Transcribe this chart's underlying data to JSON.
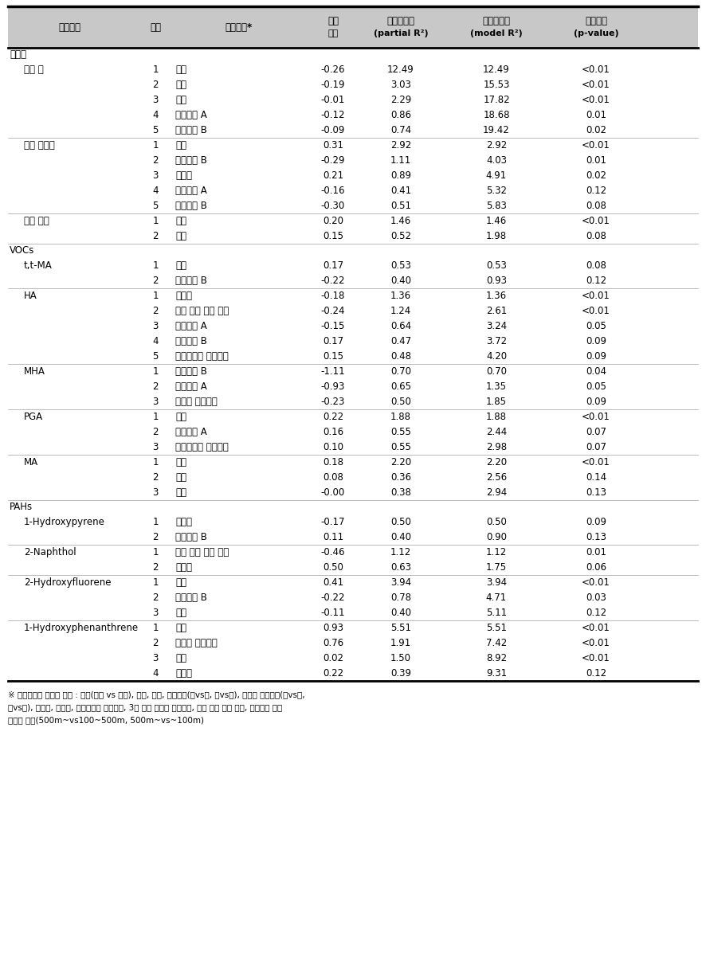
{
  "header_line1": [
    "종속변수",
    "단계",
    "독립변수*",
    "회귀",
    "부분설명력",
    "모델설명력",
    "유의수준"
  ],
  "header_line2": [
    "",
    "",
    "",
    "계수",
    "(partial R²)",
    "(model R²)",
    "(p-value)"
  ],
  "sections": [
    {
      "section_label": "중금속",
      "groups": [
        {
          "group_label": "혈중 납",
          "rows": [
            {
              "step": "1",
              "var": "성별",
              "coef": "-0.26",
              "partial": "12.49",
              "model": "12.49",
              "pval": "<0.01"
            },
            {
              "step": "2",
              "var": "지역",
              "coef": "-0.19",
              "partial": "3.03",
              "model": "15.53",
              "pval": "<0.01"
            },
            {
              "step": "3",
              "var": "연령",
              "coef": "-0.01",
              "partial": "2.29",
              "model": "17.82",
              "pval": "<0.01"
            },
            {
              "step": "4",
              "var": "도로거리 A",
              "coef": "-0.12",
              "partial": "0.86",
              "model": "18.68",
              "pval": "0.01"
            },
            {
              "step": "5",
              "var": "가구소득 B",
              "coef": "-0.09",
              "partial": "0.74",
              "model": "19.42",
              "pval": "0.02"
            }
          ]
        },
        {
          "group_label": "요중 카드뮴",
          "rows": [
            {
              "step": "1",
              "var": "성별",
              "coef": "0.31",
              "partial": "2.92",
              "model": "2.92",
              "pval": "<0.01"
            },
            {
              "step": "2",
              "var": "도로거리 B",
              "coef": "-0.29",
              "partial": "1.11",
              "model": "4.03",
              "pval": "0.01"
            },
            {
              "step": "3",
              "var": "음주력",
              "coef": "0.21",
              "partial": "0.89",
              "model": "4.91",
              "pval": "0.02"
            },
            {
              "step": "4",
              "var": "교육수준 A",
              "coef": "-0.16",
              "partial": "0.41",
              "model": "5.32",
              "pval": "0.12"
            },
            {
              "step": "5",
              "var": "교육수준 B",
              "coef": "-0.30",
              "partial": "0.51",
              "model": "5.83",
              "pval": "0.08"
            }
          ]
        },
        {
          "group_label": "요중 수은",
          "rows": [
            {
              "step": "1",
              "var": "성별",
              "coef": "0.20",
              "partial": "1.46",
              "model": "1.46",
              "pval": "<0.01"
            },
            {
              "step": "2",
              "var": "지역",
              "coef": "0.15",
              "partial": "0.52",
              "model": "1.98",
              "pval": "0.08"
            }
          ]
        }
      ]
    },
    {
      "section_label": "VOCs",
      "groups": [
        {
          "group_label": "t,t-MA",
          "rows": [
            {
              "step": "1",
              "var": "성별",
              "coef": "0.17",
              "partial": "0.53",
              "model": "0.53",
              "pval": "0.08"
            },
            {
              "step": "2",
              "var": "도로거리 B",
              "coef": "-0.22",
              "partial": "0.40",
              "model": "0.93",
              "pval": "0.12"
            }
          ]
        },
        {
          "group_label": "HA",
          "rows": [
            {
              "step": "1",
              "var": "음주력",
              "coef": "-0.18",
              "partial": "1.36",
              "model": "1.36",
              "pval": "<0.01"
            },
            {
              "step": "2",
              "var": "구운 음식 섭취 여부",
              "coef": "-0.24",
              "partial": "1.24",
              "model": "2.61",
              "pval": "<0.01"
            },
            {
              "step": "3",
              "var": "교육수준 A",
              "coef": "-0.15",
              "partial": "0.64",
              "model": "3.24",
              "pval": "0.05"
            },
            {
              "step": "4",
              "var": "가구소득 B",
              "coef": "0.17",
              "partial": "0.47",
              "model": "3.72",
              "pval": "0.09"
            },
            {
              "step": "5",
              "var": "해충방제약 사용여부",
              "coef": "0.15",
              "partial": "0.48",
              "model": "4.20",
              "pval": "0.09"
            }
          ]
        },
        {
          "group_label": "MHA",
          "rows": [
            {
              "step": "1",
              "var": "도로거리 B",
              "coef": "-1.11",
              "partial": "0.70",
              "model": "0.70",
              "pval": "0.04"
            },
            {
              "step": "2",
              "var": "도로거리 A",
              "coef": "-0.93",
              "partial": "0.65",
              "model": "1.35",
              "pval": "0.05"
            },
            {
              "step": "3",
              "var": "해산물 섭취여부",
              "coef": "-0.23",
              "partial": "0.50",
              "model": "1.85",
              "pval": "0.09"
            }
          ]
        },
        {
          "group_label": "PGA",
          "rows": [
            {
              "step": "1",
              "var": "지역",
              "coef": "0.22",
              "partial": "1.88",
              "model": "1.88",
              "pval": "<0.01"
            },
            {
              "step": "2",
              "var": "도로거리 A",
              "coef": "0.16",
              "partial": "0.55",
              "model": "2.44",
              "pval": "0.07"
            },
            {
              "step": "3",
              "var": "해충방제약 사용여부",
              "coef": "0.10",
              "partial": "0.55",
              "model": "2.98",
              "pval": "0.07"
            }
          ]
        },
        {
          "group_label": "MA",
          "rows": [
            {
              "step": "1",
              "var": "지역",
              "coef": "0.18",
              "partial": "2.20",
              "model": "2.20",
              "pval": "<0.01"
            },
            {
              "step": "2",
              "var": "성별",
              "coef": "0.08",
              "partial": "0.36",
              "model": "2.56",
              "pval": "0.14"
            },
            {
              "step": "3",
              "var": "연령",
              "coef": "-0.00",
              "partial": "0.38",
              "model": "2.94",
              "pval": "0.13"
            }
          ]
        }
      ]
    },
    {
      "section_label": "PAHs",
      "groups": [
        {
          "group_label": "1-Hydroxypyrene",
          "rows": [
            {
              "step": "1",
              "var": "흡연력",
              "coef": "-0.17",
              "partial": "0.50",
              "model": "0.50",
              "pval": "0.09"
            },
            {
              "step": "2",
              "var": "가구소득 B",
              "coef": "0.11",
              "partial": "0.40",
              "model": "0.90",
              "pval": "0.13"
            }
          ]
        },
        {
          "group_label": "2-Naphthol",
          "rows": [
            {
              "step": "1",
              "var": "구운 음식 섭취 여부",
              "coef": "-0.46",
              "partial": "1.12",
              "model": "1.12",
              "pval": "0.01"
            },
            {
              "step": "2",
              "var": "흡연력",
              "coef": "0.50",
              "partial": "0.63",
              "model": "1.75",
              "pval": "0.06"
            }
          ]
        },
        {
          "group_label": "2-Hydroxyfluorene",
          "rows": [
            {
              "step": "1",
              "var": "지역",
              "coef": "0.41",
              "partial": "3.94",
              "model": "3.94",
              "pval": "<0.01"
            },
            {
              "step": "2",
              "var": "도로거리 B",
              "coef": "-0.22",
              "partial": "0.78",
              "model": "4.71",
              "pval": "0.03"
            },
            {
              "step": "3",
              "var": "성별",
              "coef": "-0.11",
              "partial": "0.40",
              "model": "5.11",
              "pval": "0.12"
            }
          ]
        },
        {
          "group_label": "1-Hydroxyphenanthrene",
          "rows": [
            {
              "step": "1",
              "var": "지역",
              "coef": "0.93",
              "partial": "5.51",
              "model": "5.51",
              "pval": "<0.01"
            },
            {
              "step": "2",
              "var": "해산물 섭취여부",
              "coef": "0.76",
              "partial": "1.91",
              "model": "7.42",
              "pval": "<0.01"
            },
            {
              "step": "3",
              "var": "연령",
              "coef": "0.02",
              "partial": "1.50",
              "model": "8.92",
              "pval": "<0.01"
            },
            {
              "step": "4",
              "var": "음주력",
              "coef": "0.22",
              "partial": "0.39",
              "model": "9.31",
              "pval": "0.12"
            }
          ]
        }
      ]
    }
  ],
  "footnote_lines": [
    "※ 회귀분석에 포함된 변수 : 지역(비교 vs 주변), 연령, 성별, 교육수준(하vs중, 하vs상), 월평균 가구소득(하vs중,",
    "하vs상), 흡연력, 음주력, 해충방제약 사용여부, 3일 이내 해산물 섭취여부, 구운 음식 섭취 여부, 주거지와 도로",
    "까지의 거리(500m~vs100~500m, 500m~vs~100m)"
  ],
  "bg_color": "#ffffff",
  "header_bg": "#c8c8c8",
  "border_color": "#000000",
  "text_color": "#000000"
}
